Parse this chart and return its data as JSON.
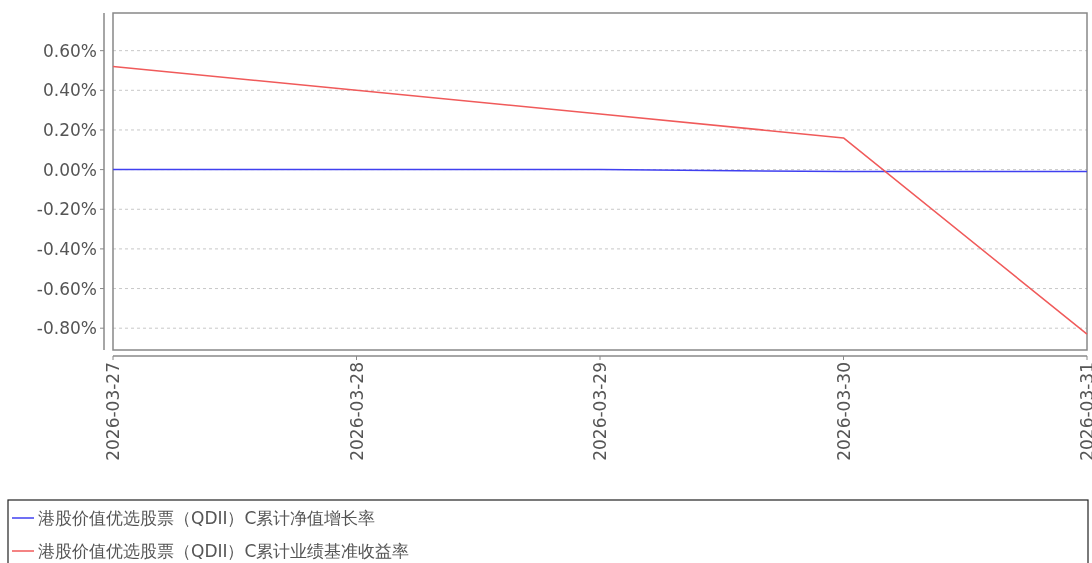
{
  "chart_data": {
    "type": "line",
    "x": [
      "2026-03-27",
      "2026-03-28",
      "2026-03-29",
      "2026-03-30",
      "2026-03-31"
    ],
    "series": [
      {
        "name": "港股价值优选股票（QDII）C累计净值增长率",
        "color": "#4040f0",
        "values": [
          0,
          0,
          0,
          -0.01,
          -0.01
        ]
      },
      {
        "name": "港股价值优选股票（QDII）C累计业绩基准收益率",
        "color": "#f05a5a",
        "values": [
          0.52,
          0.4,
          0.28,
          0.16,
          -0.83
        ]
      }
    ],
    "xlim": [
      "2026-03-27",
      "2026-03-31"
    ],
    "xticks": [
      "2026-03-27",
      "2026-03-28",
      "2026-03-29",
      "2026-03-30",
      "2026-03-31"
    ],
    "ylim": [
      -0.91,
      0.79
    ],
    "yticks": [
      {
        "value": 0.6,
        "label": "0.60%"
      },
      {
        "value": 0.4,
        "label": "0.40%"
      },
      {
        "value": 0.2,
        "label": "0.20%"
      },
      {
        "value": 0,
        "label": "0.00%"
      },
      {
        "value": -0.2,
        "label": "-0.20%"
      },
      {
        "value": -0.4,
        "label": "-0.40%"
      },
      {
        "value": -0.6,
        "label": "-0.60%"
      },
      {
        "value": -0.8,
        "label": "-0.80%"
      }
    ],
    "grid": "y",
    "legend": "bottom",
    "marker": "none",
    "line_style": "solid"
  }
}
